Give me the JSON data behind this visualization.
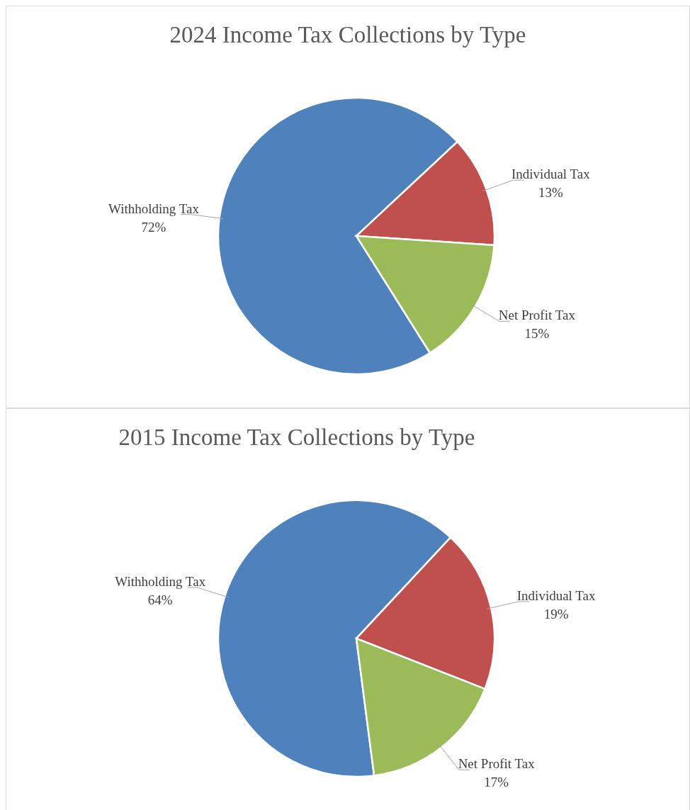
{
  "chart_data": [
    {
      "type": "pie",
      "title": "2024 Income Tax Collections by Type",
      "categories": [
        "Withholding Tax",
        "Individual Tax",
        "Net Profit Tax"
      ],
      "values": [
        72,
        13,
        15
      ],
      "value_labels": [
        "72%",
        "13%",
        "15%"
      ],
      "colors": [
        "#4f81bd",
        "#c0504d",
        "#9bbb59"
      ],
      "legend": false
    },
    {
      "type": "pie",
      "title": "2015 Income Tax Collections by Type",
      "categories": [
        "Withholding Tax",
        "Individual Tax",
        "Net Profit Tax"
      ],
      "values": [
        64,
        19,
        17
      ],
      "value_labels": [
        "64%",
        "19%",
        "17%"
      ],
      "colors": [
        "#4f81bd",
        "#c0504d",
        "#9bbb59"
      ],
      "legend": false
    }
  ]
}
